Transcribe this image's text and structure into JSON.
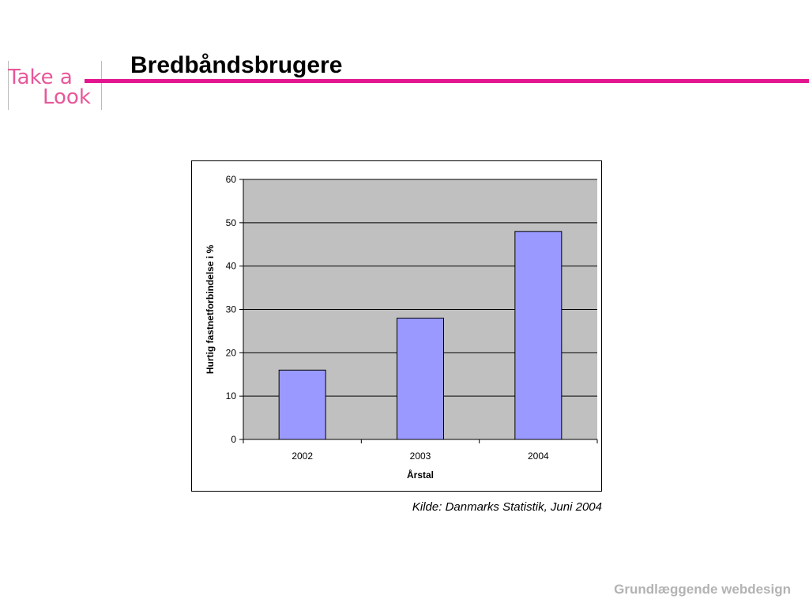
{
  "logo": {
    "line1": "Take a",
    "line2": "Look"
  },
  "slide": {
    "title": "Bredbåndsbrugere"
  },
  "chart_data": {
    "type": "bar",
    "title": "",
    "categories": [
      "2002",
      "2003",
      "2004"
    ],
    "values": [
      16,
      28,
      48
    ],
    "xlabel": "Årstal",
    "ylabel": "Hurtig fastnetforbindelse i %",
    "ylim": [
      0,
      60
    ],
    "yticks": [
      0,
      10,
      20,
      30,
      40,
      50,
      60
    ],
    "grid": true,
    "legend": "none",
    "colors": {
      "bar": "#9999ff",
      "plot_bg": "#c0c0c0",
      "bar_edge": "#000000"
    }
  },
  "source": "Kilde: Danmarks Statistik, Juni 2004",
  "footer": "Grundlæggende webdesign",
  "colors": {
    "accent": "#e4168f",
    "logo": "#e8579a",
    "footer_text": "#b3b3b3"
  }
}
